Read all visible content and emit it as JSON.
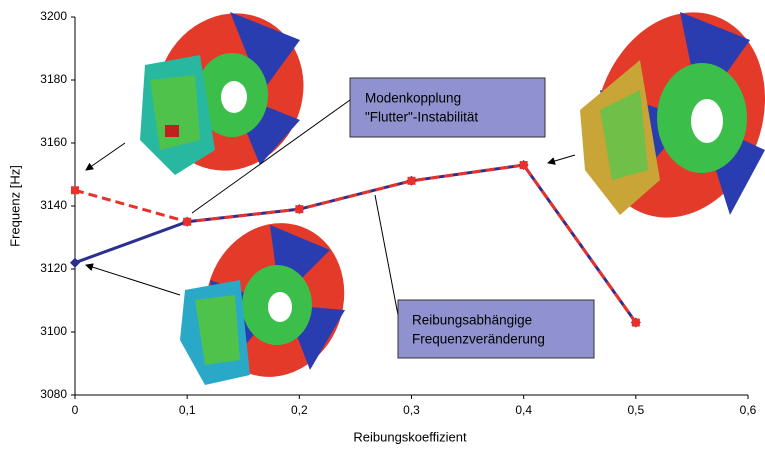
{
  "chart_data": {
    "type": "line",
    "x_label": "Reibungskoeffizient",
    "y_label": "Frequenz [Hz]",
    "x": [
      0,
      0.1,
      0.2,
      0.3,
      0.4,
      0.5
    ],
    "series": [
      {
        "color": "#2b2f8f",
        "values": [
          3122,
          3135,
          3139,
          3148,
          3153,
          3103
        ]
      },
      {
        "color": "#e8312a",
        "values": [
          3145,
          3135,
          3139,
          3148,
          3153,
          3103
        ]
      }
    ],
    "xlim": [
      0,
      0.6
    ],
    "xticks": [
      0,
      {
        "value": 0.1,
        "label": "0,1"
      },
      {
        "value": 0.2,
        "label": "0,2"
      },
      {
        "value": 0.3,
        "label": "0,3"
      },
      {
        "value": 0.4,
        "label": "0,4"
      },
      {
        "value": 0.5,
        "label": "0,5"
      },
      {
        "value": 0.6,
        "label": "0,6"
      }
    ],
    "ylim": [
      3080,
      3200
    ],
    "yticks": [
      3080,
      3100,
      3120,
      3140,
      3160,
      3180,
      3200
    ],
    "annotations": [
      {
        "lines": [
          "Modenkopplung",
          "\"Flutter\"-Instabilität"
        ]
      },
      {
        "lines": [
          "Reibungsabhängige",
          "Frequenzveränderung"
        ]
      }
    ]
  }
}
